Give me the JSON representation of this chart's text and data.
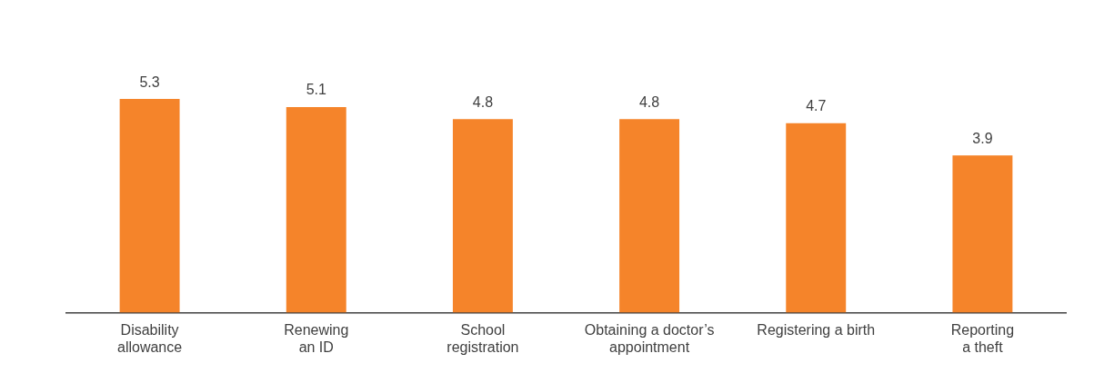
{
  "chart_data": {
    "type": "bar",
    "categories": [
      "Disability\nallowance",
      "Renewing\nan ID",
      "School\nregistration",
      "Obtaining a doctor’s\nappointment",
      "Registering a birth",
      "Reporting\na theft"
    ],
    "values": [
      5.3,
      5.1,
      4.8,
      4.8,
      4.7,
      3.9
    ],
    "color": "#f5842a",
    "data_labels": true
  }
}
